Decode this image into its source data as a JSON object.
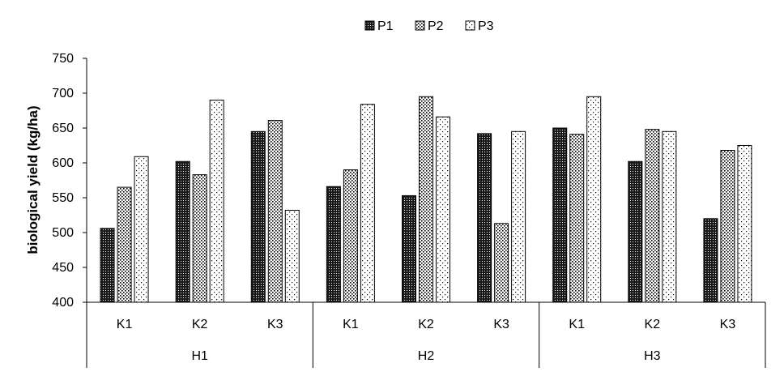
{
  "chart_data": {
    "type": "bar",
    "ylabel": "biological yield (kg/ha)",
    "xlabel": "",
    "ylim": [
      400,
      750
    ],
    "y_ticks": [
      400,
      450,
      500,
      550,
      600,
      650,
      700,
      750
    ],
    "grid": false,
    "legend_position": "top-center",
    "groups": [
      {
        "label": "H1",
        "categories": [
          "K1",
          "K2",
          "K3"
        ]
      },
      {
        "label": "H2",
        "categories": [
          "K1",
          "K2",
          "K3"
        ]
      },
      {
        "label": "H3",
        "categories": [
          "K1",
          "K2",
          "K3"
        ]
      }
    ],
    "series": [
      {
        "name": "P1",
        "pattern": "dense-dots",
        "values": [
          506,
          602,
          645,
          566,
          553,
          642,
          650,
          602,
          520
        ]
      },
      {
        "name": "P2",
        "pattern": "medium-dots",
        "values": [
          565,
          583,
          661,
          590,
          695,
          513,
          641,
          648,
          618
        ]
      },
      {
        "name": "P3",
        "pattern": "sparse-dots",
        "values": [
          609,
          690,
          532,
          684,
          666,
          645,
          695,
          645,
          625
        ]
      }
    ],
    "colors": {
      "bar_outline": "#000000",
      "axis": "#000000",
      "background": "#ffffff"
    }
  }
}
